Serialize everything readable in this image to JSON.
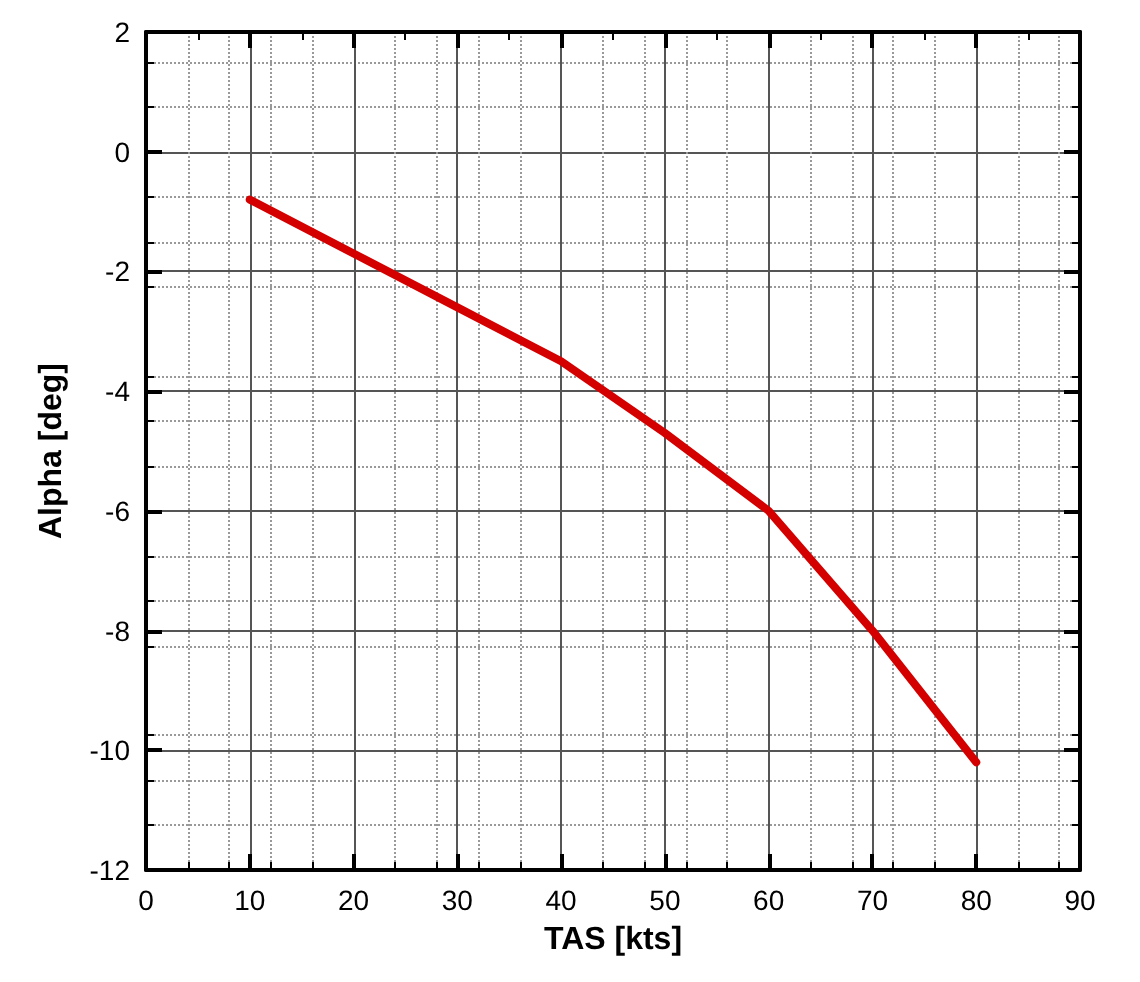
{
  "chart_data": {
    "type": "line",
    "xlabel": "TAS [kts]",
    "ylabel": "Alpha [deg]",
    "x": [
      10,
      20,
      30,
      40,
      50,
      60,
      70,
      80
    ],
    "series": [
      {
        "color": "#d40000",
        "values": [
          -0.8,
          -1.7,
          -2.6,
          -3.5,
          -4.7,
          -6.0,
          -8.0,
          -10.2
        ]
      }
    ],
    "xlim": [
      0,
      90
    ],
    "xticks": [
      0,
      10,
      20,
      30,
      40,
      50,
      60,
      70,
      80,
      90
    ],
    "ylim": [
      -12,
      2
    ],
    "yticks": [
      -12,
      -10,
      -8,
      -6,
      -4,
      -2,
      0,
      2
    ],
    "grid": true,
    "marker": "none",
    "line_style": "solid"
  }
}
